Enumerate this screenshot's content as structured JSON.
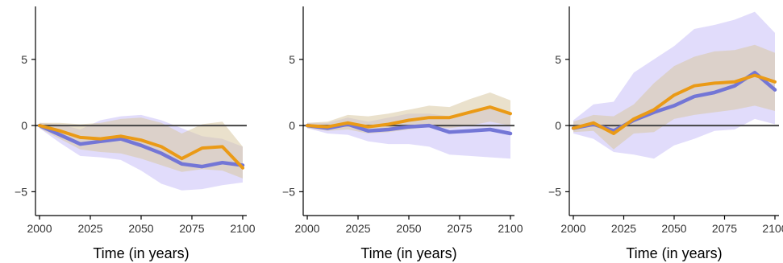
{
  "colors": {
    "blue": "#7376d6",
    "orange": "#ea9a16",
    "blue_band": "#c9bff7",
    "orange_band": "#d8c9a2",
    "zero_line": "#444444",
    "axis": "#000000"
  },
  "chart_data": [
    {
      "type": "line",
      "xlabel": "Time (in years)",
      "ylabel": "",
      "xlim": [
        1998,
        2102
      ],
      "ylim": [
        -6.8,
        9
      ],
      "xticks": [
        2000,
        2025,
        2050,
        2075,
        2100
      ],
      "yticks": [
        -5,
        0,
        5
      ],
      "xtick_labels": [
        "2000",
        "2025",
        "2050",
        "2075",
        "2100"
      ],
      "ytick_labels": [
        "−5",
        "0",
        "5"
      ],
      "zero_line": true,
      "grid": false,
      "x": [
        2000,
        2010,
        2020,
        2030,
        2040,
        2050,
        2060,
        2070,
        2080,
        2090,
        2100
      ],
      "series": [
        {
          "values": [
            0,
            -0.7,
            -1.4,
            -1.2,
            -1.0,
            -1.5,
            -2.1,
            -2.9,
            -3.1,
            -2.8,
            -3.0
          ],
          "lower": [
            -0.2,
            -1.3,
            -2.3,
            -2.4,
            -2.6,
            -3.4,
            -4.4,
            -4.9,
            -4.8,
            -4.5,
            -4.3
          ],
          "upper": [
            0.2,
            0.1,
            -0.3,
            0.4,
            0.7,
            0.8,
            0.4,
            -0.2,
            -0.8,
            -1.0,
            -1.6
          ]
        },
        {
          "values": [
            0,
            -0.4,
            -0.9,
            -1.0,
            -0.8,
            -1.1,
            -1.6,
            -2.5,
            -1.7,
            -1.6,
            -3.2
          ],
          "lower": [
            -0.2,
            -1.0,
            -1.8,
            -2.0,
            -2.1,
            -2.5,
            -3.0,
            -3.5,
            -3.3,
            -3.4,
            -4.0
          ],
          "upper": [
            0.2,
            0.2,
            0.1,
            0.2,
            0.5,
            0.6,
            0.2,
            -0.6,
            0.1,
            0.3,
            -1.6
          ]
        }
      ]
    },
    {
      "type": "line",
      "xlabel": "Time (in years)",
      "ylabel": "",
      "xlim": [
        1998,
        2102
      ],
      "ylim": [
        -6.8,
        9
      ],
      "xticks": [
        2000,
        2025,
        2050,
        2075,
        2100
      ],
      "yticks": [
        -5,
        0,
        5
      ],
      "xtick_labels": [
        "2000",
        "2025",
        "2050",
        "2075",
        "2100"
      ],
      "ytick_labels": [
        "−5",
        "0",
        "5"
      ],
      "zero_line": true,
      "grid": false,
      "x": [
        2000,
        2010,
        2020,
        2030,
        2040,
        2050,
        2060,
        2070,
        2080,
        2090,
        2100
      ],
      "series": [
        {
          "values": [
            0,
            -0.2,
            0.1,
            -0.4,
            -0.3,
            -0.1,
            0.0,
            -0.5,
            -0.4,
            -0.3,
            -0.6
          ],
          "lower": [
            -0.2,
            -0.6,
            -0.7,
            -1.2,
            -1.4,
            -1.4,
            -1.6,
            -2.2,
            -2.3,
            -2.4,
            -2.5
          ],
          "upper": [
            0.2,
            0.2,
            0.6,
            0.3,
            0.6,
            0.9,
            0.9,
            0.7,
            1.1,
            1.3,
            1.0
          ]
        },
        {
          "values": [
            0,
            -0.1,
            0.2,
            -0.1,
            0.1,
            0.4,
            0.6,
            0.6,
            1.0,
            1.4,
            0.9
          ],
          "lower": [
            -0.2,
            -0.4,
            -0.3,
            -0.6,
            -0.5,
            -0.3,
            -0.1,
            -0.2,
            0.0,
            0.3,
            0.0
          ],
          "upper": [
            0.2,
            0.3,
            0.8,
            0.7,
            0.9,
            1.2,
            1.5,
            1.4,
            2.0,
            2.5,
            1.9
          ]
        }
      ]
    },
    {
      "type": "line",
      "xlabel": "Time (in years)",
      "ylabel": "",
      "xlim": [
        1998,
        2102
      ],
      "ylim": [
        -6.8,
        9
      ],
      "xticks": [
        2000,
        2025,
        2050,
        2075,
        2100
      ],
      "yticks": [
        -5,
        0,
        5
      ],
      "xtick_labels": [
        "2000",
        "2025",
        "2050",
        "2075",
        "2100"
      ],
      "ytick_labels": [
        "−5",
        "0",
        "5"
      ],
      "zero_line": true,
      "grid": false,
      "x": [
        2000,
        2010,
        2020,
        2030,
        2040,
        2050,
        2060,
        2070,
        2080,
        2090,
        2100
      ],
      "series": [
        {
          "values": [
            -0.2,
            0.1,
            -0.4,
            0.4,
            1.0,
            1.5,
            2.2,
            2.5,
            3.0,
            4.0,
            2.7
          ],
          "lower": [
            -0.6,
            -1.0,
            -2.0,
            -2.2,
            -2.5,
            -1.5,
            -1.0,
            -0.4,
            -0.3,
            0.5,
            0.1
          ],
          "upper": [
            0.4,
            1.6,
            1.8,
            4.0,
            5.0,
            6.0,
            7.3,
            7.6,
            8.0,
            8.6,
            7.0
          ]
        },
        {
          "values": [
            -0.2,
            0.2,
            -0.6,
            0.5,
            1.2,
            2.3,
            3.0,
            3.2,
            3.3,
            3.8,
            3.3
          ],
          "lower": [
            -0.5,
            -0.4,
            -1.8,
            -0.6,
            -0.5,
            0.5,
            0.8,
            1.0,
            1.2,
            1.5,
            1.1
          ],
          "upper": [
            0.3,
            0.8,
            0.7,
            1.6,
            3.2,
            4.5,
            5.2,
            5.6,
            5.7,
            6.1,
            5.5
          ]
        }
      ]
    }
  ]
}
